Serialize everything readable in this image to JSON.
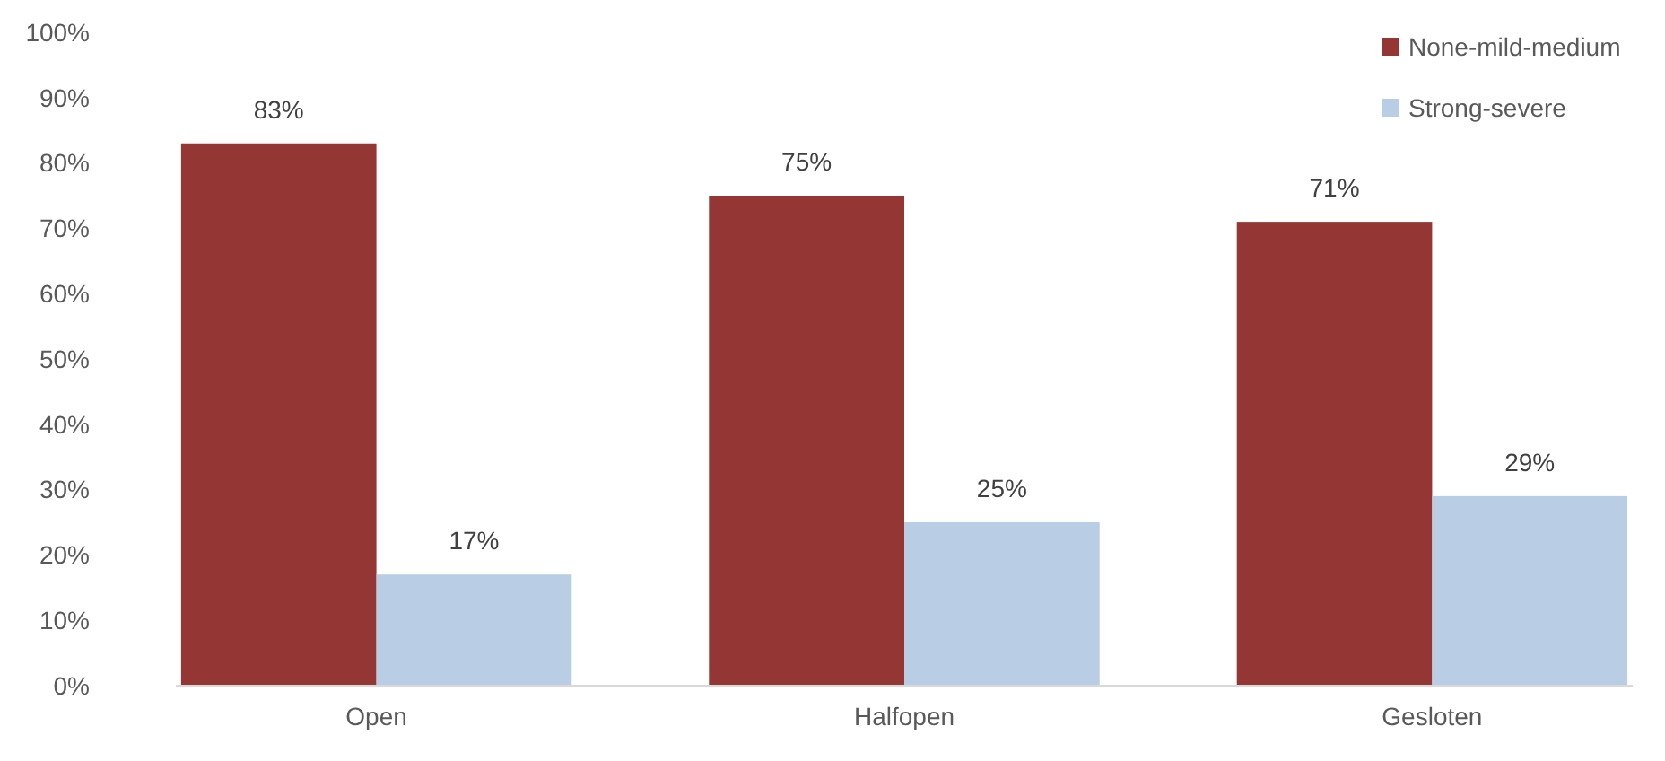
{
  "chart_data": {
    "type": "bar",
    "categories": [
      "Open",
      "Halfopen",
      "Gesloten"
    ],
    "series": [
      {
        "name": "None-mild-medium",
        "color": "#943634",
        "values": [
          83,
          75,
          71
        ],
        "value_labels": [
          "83%",
          "75%",
          "71%"
        ]
      },
      {
        "name": "Strong-severe",
        "color": "#b9cde5",
        "values": [
          17,
          25,
          29
        ],
        "value_labels": [
          "17%",
          "25%",
          "29%"
        ]
      }
    ],
    "ylim": [
      0,
      100
    ],
    "yticks": [
      {
        "value": 0,
        "label": "0%"
      },
      {
        "value": 10,
        "label": "10%"
      },
      {
        "value": 20,
        "label": "20%"
      },
      {
        "value": 30,
        "label": "30%"
      },
      {
        "value": 40,
        "label": "40%"
      },
      {
        "value": 50,
        "label": "50%"
      },
      {
        "value": 60,
        "label": "60%"
      },
      {
        "value": 70,
        "label": "70%"
      },
      {
        "value": 80,
        "label": "80%"
      },
      {
        "value": 90,
        "label": "90%"
      },
      {
        "value": 100,
        "label": "100%"
      }
    ],
    "grid": false,
    "legend": "top right"
  }
}
